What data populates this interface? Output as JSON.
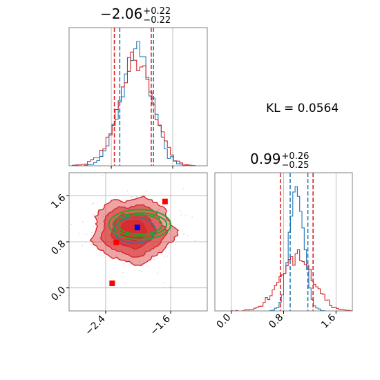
{
  "kl_text": "KL = 0.0564",
  "titles": {
    "param1": {
      "value": "−2.06",
      "upper": "+0.22",
      "lower": "−0.22"
    },
    "param2": {
      "value": "0.99",
      "upper": "+0.26",
      "lower": "−0.25"
    }
  },
  "colors": {
    "red": "#d62728",
    "blue": "#1f77b4",
    "green": "#2ca02c",
    "point_blue": "#0000ff",
    "point_red": "#ff0000",
    "grid": "#b0b0b0"
  },
  "chart_data": [
    {
      "type": "histogram",
      "panel": "marginal-param1",
      "xlim": [
        -2.95,
        -1.15
      ],
      "xticks": [
        -2.4,
        -1.6
      ],
      "series": [
        {
          "name": "",
          "color": "#1f77b4",
          "mean": -2.07,
          "sd": 0.2,
          "quantile_lines": [
            -2.29,
            -1.85
          ]
        },
        {
          "name": "",
          "color": "#d62728",
          "mean": -2.08,
          "sd": 0.22,
          "quantile_lines": [
            -2.36,
            -1.88
          ]
        }
      ]
    },
    {
      "type": "histogram",
      "panel": "marginal-param2",
      "xlim": [
        -0.25,
        1.85
      ],
      "xticks": [
        0.0,
        0.8,
        1.6
      ],
      "xtick_labels": [
        "0.0",
        "0.8",
        "1.6"
      ],
      "series": [
        {
          "name": "",
          "color": "#1f77b4",
          "mean": 1.0,
          "sd": 0.11,
          "quantile_lines": [
            0.9,
            1.17
          ]
        },
        {
          "name": "",
          "color": "#d62728",
          "mean": 1.0,
          "sd": 0.25,
          "quantile_lines": [
            0.75,
            1.25
          ]
        }
      ]
    },
    {
      "type": "scatter",
      "panel": "joint",
      "xlim": [
        -2.85,
        -1.15
      ],
      "ylim": [
        -0.4,
        2.0
      ],
      "xticks": [
        -2.4,
        -1.6
      ],
      "xtick_labels": [
        "−2.4",
        "−1.6"
      ],
      "yticks": [
        0.0,
        0.8,
        1.6
      ],
      "ytick_labels": [
        "0.0",
        "0.8",
        "1.6"
      ],
      "grid": true,
      "density_contours": {
        "color": "#d62728",
        "center": [
          -2.06,
          1.0
        ],
        "sd": [
          0.22,
          0.25
        ]
      },
      "ellipses": {
        "color": "#2ca02c",
        "center": [
          -1.98,
          1.1
        ],
        "semi_axes": [
          [
            0.27,
            0.17
          ],
          [
            0.33,
            0.2
          ],
          [
            0.38,
            0.26
          ]
        ]
      },
      "points": [
        {
          "x": -2.32,
          "y": 0.08,
          "color": "#ff0000"
        },
        {
          "x": -1.67,
          "y": 1.5,
          "color": "#ff0000"
        },
        {
          "x": -2.27,
          "y": 0.79,
          "color": "#ff0000"
        },
        {
          "x": -2.01,
          "y": 1.05,
          "color": "#0000ff"
        }
      ]
    }
  ]
}
